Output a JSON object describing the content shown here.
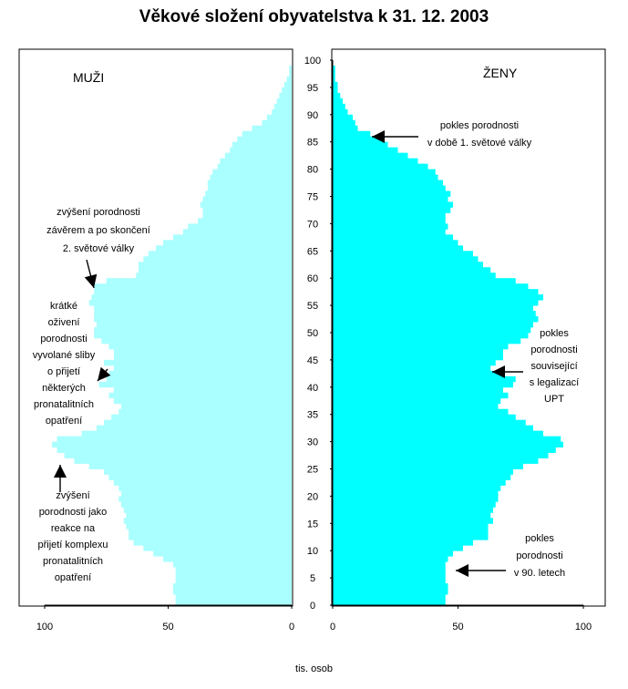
{
  "title": "Věkové složení obyvatelstva k 31. 12. 2003",
  "unit_label": "tis. osob",
  "colors": {
    "male": "#aaffff",
    "female": "#00ffff",
    "axis": "#000000"
  },
  "chart_data": {
    "type": "bar",
    "orientation": "horizontal-pyramid",
    "title": "Věkové složení obyvatelstva k 31. 12. 2003",
    "xlabel": "tis. osob",
    "ylabel": "",
    "age_axis": {
      "min": 0,
      "max": 100,
      "ticks": [
        0,
        5,
        10,
        15,
        20,
        25,
        30,
        35,
        40,
        45,
        50,
        55,
        60,
        65,
        70,
        75,
        80,
        85,
        90,
        95,
        100
      ]
    },
    "value_axis": {
      "min": 0,
      "max": 100,
      "ticks": [
        0,
        50,
        100
      ]
    },
    "ages": [
      0,
      1,
      2,
      3,
      4,
      5,
      6,
      7,
      8,
      9,
      10,
      11,
      12,
      13,
      14,
      15,
      16,
      17,
      18,
      19,
      20,
      21,
      22,
      23,
      24,
      25,
      26,
      27,
      28,
      29,
      30,
      31,
      32,
      33,
      34,
      35,
      36,
      37,
      38,
      39,
      40,
      41,
      42,
      43,
      44,
      45,
      46,
      47,
      48,
      49,
      50,
      51,
      52,
      53,
      54,
      55,
      56,
      57,
      58,
      59,
      60,
      61,
      62,
      63,
      64,
      65,
      66,
      67,
      68,
      69,
      70,
      71,
      72,
      73,
      74,
      75,
      76,
      77,
      78,
      79,
      80,
      81,
      82,
      83,
      84,
      85,
      86,
      87,
      88,
      89,
      90,
      91,
      92,
      93,
      94,
      95,
      96,
      97,
      98
    ],
    "series": [
      {
        "name": "MUŽI",
        "values": [
          47,
          47,
          48,
          48,
          47,
          47,
          47,
          48,
          52,
          56,
          60,
          64,
          66,
          66,
          67,
          68,
          67,
          68,
          69,
          70,
          69,
          70,
          72,
          74,
          76,
          82,
          88,
          92,
          95,
          97,
          95,
          85,
          79,
          76,
          73,
          70,
          69,
          72,
          74,
          72,
          78,
          75,
          74,
          72,
          76,
          72,
          72,
          74,
          77,
          80,
          80,
          79,
          80,
          80,
          80,
          82,
          81,
          80,
          80,
          75,
          63,
          62,
          62,
          60,
          58,
          55,
          52,
          48,
          44,
          42,
          38,
          36,
          36,
          37,
          36,
          35,
          34,
          34,
          33,
          32,
          30,
          29,
          27,
          25,
          24,
          22,
          20,
          16,
          12,
          10,
          8,
          7,
          6,
          5,
          4,
          3,
          2,
          1,
          1
        ]
      },
      {
        "name": "ŽENY",
        "values": [
          45,
          45,
          46,
          46,
          45,
          45,
          45,
          45,
          46,
          48,
          52,
          56,
          62,
          62,
          62,
          64,
          63,
          64,
          65,
          66,
          66,
          67,
          69,
          71,
          72,
          76,
          82,
          86,
          89,
          92,
          91,
          84,
          80,
          77,
          73,
          70,
          66,
          67,
          70,
          68,
          72,
          73,
          68,
          63,
          65,
          68,
          68,
          70,
          75,
          78,
          79,
          80,
          82,
          81,
          80,
          82,
          84,
          82,
          78,
          73,
          65,
          63,
          60,
          58,
          56,
          52,
          50,
          48,
          45,
          46,
          45,
          45,
          47,
          48,
          46,
          47,
          45,
          44,
          42,
          41,
          38,
          34,
          30,
          26,
          22,
          20,
          15,
          10,
          9,
          8,
          6,
          5,
          4,
          3,
          2,
          2,
          1,
          1,
          1
        ]
      }
    ],
    "annotations": [
      {
        "side": "left",
        "lines": [
          "zvýšení porodnosti",
          "závěrem a po skončení",
          "2. světové války"
        ],
        "age": 57
      },
      {
        "side": "left",
        "lines": [
          "krátké",
          "oživení",
          "porodnosti",
          "vyvolané sliby",
          "o přijetí",
          "některých",
          "pronatalitních",
          "opatření"
        ],
        "age": 42
      },
      {
        "side": "left",
        "lines": [
          "zvýšení",
          "porodnosti jako",
          "reakce na",
          "přijetí komplexu",
          "pronatalitních",
          "opatření"
        ],
        "age": 27
      },
      {
        "side": "right",
        "lines": [
          "pokles porodnosti",
          "v době 1. světové války"
        ],
        "age": 87
      },
      {
        "side": "right",
        "lines": [
          "pokles",
          "porodnosti",
          "související",
          "s legalizací",
          "UPT"
        ],
        "age": 43
      },
      {
        "side": "right",
        "lines": [
          "pokles",
          "porodnosti",
          "v 90. letech"
        ],
        "age": 7
      }
    ]
  }
}
